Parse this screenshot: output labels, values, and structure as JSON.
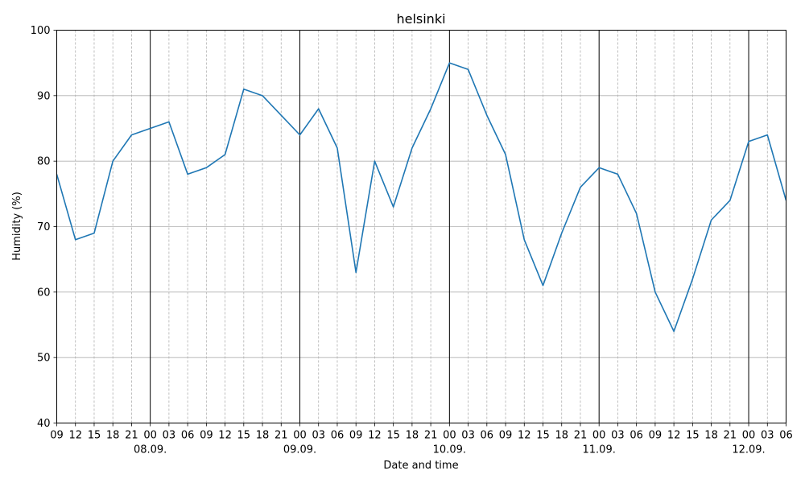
{
  "chart_data": {
    "type": "line",
    "title": "helsinki",
    "xlabel": "Date and time",
    "ylabel": "Humidity (%)",
    "ylim": [
      40,
      100
    ],
    "y_ticks": [
      40,
      50,
      60,
      70,
      80,
      90,
      100
    ],
    "x_tick_labels": [
      "09",
      "12",
      "15",
      "18",
      "21",
      "00",
      "03",
      "06",
      "09",
      "12",
      "15",
      "18",
      "21",
      "00",
      "03",
      "06",
      "09",
      "12",
      "15",
      "18",
      "21",
      "00",
      "03",
      "06",
      "09",
      "12",
      "15",
      "18",
      "21",
      "00",
      "03",
      "06",
      "09",
      "12",
      "15",
      "18",
      "21",
      "00",
      "03",
      "06"
    ],
    "date_labels": [
      {
        "label": "08.09.",
        "tick_index": 5
      },
      {
        "label": "09.09.",
        "tick_index": 13
      },
      {
        "label": "10.09.",
        "tick_index": 21
      },
      {
        "label": "11.09.",
        "tick_index": 29
      },
      {
        "label": "12.09.",
        "tick_index": 37
      }
    ],
    "grid": true,
    "line_color": "#1f77b4",
    "series": [
      {
        "values": [
          78,
          68,
          69,
          80,
          84,
          85,
          86,
          78,
          79,
          81,
          91,
          90,
          87,
          84,
          88,
          82,
          63,
          80,
          73,
          82,
          88,
          95,
          94,
          87,
          81,
          68,
          61,
          69,
          76,
          79,
          78,
          72,
          60,
          54,
          62,
          71,
          74,
          83,
          84,
          74
        ]
      }
    ]
  }
}
